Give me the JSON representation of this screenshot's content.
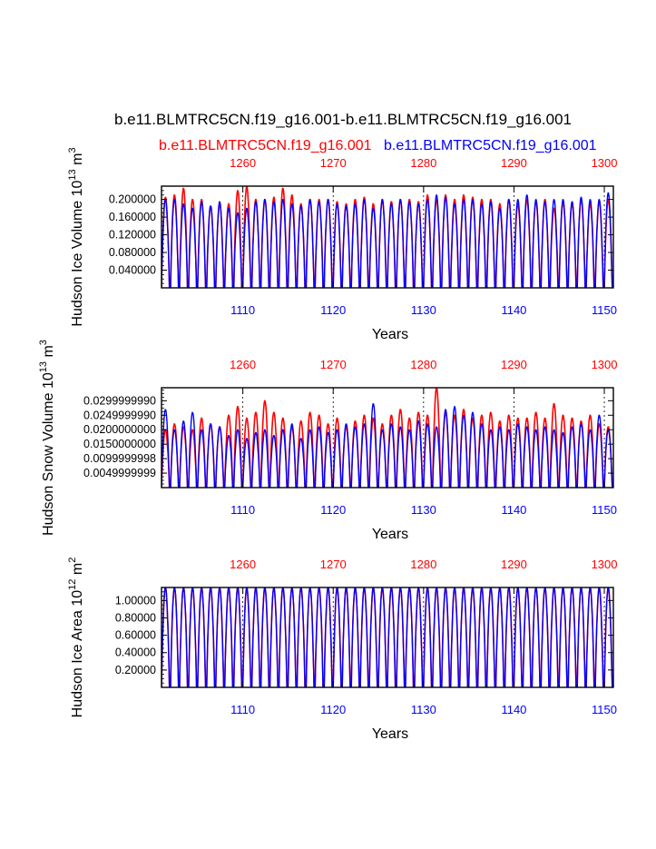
{
  "title": "b.e11.BLMTRC5CN.f19_g16.001-b.e11.BLMTRC5CN.f19_g16.001",
  "legend": {
    "red_case": "b.e11.BLMTRC5CN.f19_g16.001",
    "blue_case": "b.e11.BLMTRC5CN.f19_g16.001"
  },
  "colors": {
    "red": "#ff0000",
    "blue": "#0000ff",
    "axis": "#000000",
    "grid": "#000000"
  },
  "chart_data": [
    {
      "type": "line",
      "ylabel_main": "Hudson Ice Volume 10",
      "ylabel_exp": "13",
      "ylabel_unit": " m",
      "ylabel_unit_exp": "3",
      "xlabel": "Years",
      "x_bottom_ticks": [
        "1110",
        "1120",
        "1130",
        "1140",
        "1150"
      ],
      "x_top_ticks": [
        "1260",
        "1270",
        "1280",
        "1290",
        "1300"
      ],
      "x_bottom_range": [
        1101,
        1151
      ],
      "x_top_range": [
        1251,
        1301
      ],
      "ylim": [
        0.0,
        0.23
      ],
      "y_ticks": [
        "0.040000",
        "0.080000",
        "0.120000",
        "0.160000",
        "0.200000"
      ],
      "y_tick_values": [
        0.04,
        0.08,
        0.12,
        0.16,
        0.2
      ],
      "series": [
        {
          "name": "b.e11.BLMTRC5CN.f19_g16.001 (red)",
          "color": "#ff0000",
          "cycle_min": 0.0,
          "annual_max": [
            0.205,
            0.21,
            0.225,
            0.2,
            0.2,
            0.185,
            0.19,
            0.19,
            0.22,
            0.23,
            0.2,
            0.2,
            0.205,
            0.225,
            0.21,
            0.19,
            0.2,
            0.2,
            0.2,
            0.195,
            0.19,
            0.2,
            0.205,
            0.19,
            0.2,
            0.195,
            0.2,
            0.2,
            0.195,
            0.21,
            0.2,
            0.21,
            0.2,
            0.21,
            0.205,
            0.2,
            0.2,
            0.19,
            0.2,
            0.19,
            0.2,
            0.195,
            0.2,
            0.18,
            0.195,
            0.19,
            0.2,
            0.19,
            0.195,
            0.2
          ]
        },
        {
          "name": "b.e11.BLMTRC5CN.f19_g16.001 (blue)",
          "color": "#0000ff",
          "cycle_min": 0.0,
          "annual_max": [
            0.2,
            0.2,
            0.19,
            0.18,
            0.195,
            0.185,
            0.195,
            0.18,
            0.17,
            0.18,
            0.195,
            0.2,
            0.195,
            0.2,
            0.19,
            0.185,
            0.2,
            0.195,
            0.2,
            0.19,
            0.185,
            0.19,
            0.2,
            0.18,
            0.2,
            0.19,
            0.2,
            0.195,
            0.19,
            0.2,
            0.21,
            0.205,
            0.19,
            0.2,
            0.2,
            0.19,
            0.195,
            0.18,
            0.2,
            0.2,
            0.21,
            0.2,
            0.195,
            0.2,
            0.2,
            0.195,
            0.205,
            0.2,
            0.2,
            0.215
          ]
        }
      ]
    },
    {
      "type": "line",
      "ylabel_main": "Hudson Snow Volume 10",
      "ylabel_exp": "13",
      "ylabel_unit": " m",
      "ylabel_unit_exp": "3",
      "xlabel": "Years",
      "x_bottom_ticks": [
        "1110",
        "1120",
        "1130",
        "1140",
        "1150"
      ],
      "x_top_ticks": [
        "1260",
        "1270",
        "1280",
        "1290",
        "1300"
      ],
      "x_bottom_range": [
        1101,
        1151
      ],
      "x_top_range": [
        1251,
        1301
      ],
      "ylim": [
        0.0,
        0.0345
      ],
      "y_ticks": [
        "0.0049999999",
        "0.0099999998",
        "0.0150000000",
        "0.0200000000",
        "0.0249999990",
        "0.0299999990"
      ],
      "y_tick_values": [
        0.005,
        0.01,
        0.015,
        0.02,
        0.025,
        0.03
      ],
      "series": [
        {
          "name": "b.e11.BLMTRC5CN.f19_g16.001 (red)",
          "color": "#ff0000",
          "cycle_min": 0.0,
          "annual_max": [
            0.02,
            0.022,
            0.021,
            0.02,
            0.024,
            0.022,
            0.021,
            0.025,
            0.028,
            0.024,
            0.026,
            0.03,
            0.026,
            0.024,
            0.021,
            0.023,
            0.026,
            0.025,
            0.022,
            0.024,
            0.021,
            0.023,
            0.025,
            0.024,
            0.022,
            0.025,
            0.027,
            0.024,
            0.026,
            0.025,
            0.0345,
            0.026,
            0.025,
            0.027,
            0.024,
            0.025,
            0.026,
            0.023,
            0.025,
            0.024,
            0.024,
            0.026,
            0.024,
            0.029,
            0.025,
            0.024,
            0.023,
            0.025,
            0.022,
            0.021
          ]
        },
        {
          "name": "b.e11.BLMTRC5CN.f19_g16.001 (blue)",
          "color": "#0000ff",
          "cycle_min": 0.0,
          "annual_max": [
            0.027,
            0.02,
            0.023,
            0.026,
            0.02,
            0.022,
            0.021,
            0.018,
            0.02,
            0.017,
            0.019,
            0.02,
            0.018,
            0.02,
            0.022,
            0.017,
            0.02,
            0.021,
            0.019,
            0.02,
            0.022,
            0.021,
            0.022,
            0.029,
            0.02,
            0.022,
            0.021,
            0.02,
            0.023,
            0.022,
            0.021,
            0.027,
            0.028,
            0.025,
            0.026,
            0.022,
            0.02,
            0.021,
            0.02,
            0.022,
            0.021,
            0.02,
            0.021,
            0.02,
            0.019,
            0.021,
            0.022,
            0.02,
            0.025,
            0.02
          ]
        }
      ]
    },
    {
      "type": "line",
      "ylabel_main": "Hudson Ice Area 10",
      "ylabel_exp": "12",
      "ylabel_unit": " m",
      "ylabel_unit_exp": "2",
      "xlabel": "Years",
      "x_bottom_ticks": [
        "1110",
        "1120",
        "1130",
        "1140",
        "1150"
      ],
      "x_top_ticks": [
        "1260",
        "1270",
        "1280",
        "1290",
        "1300"
      ],
      "x_bottom_range": [
        1101,
        1151
      ],
      "x_top_range": [
        1251,
        1301
      ],
      "ylim": [
        0.0,
        1.15
      ],
      "y_ticks": [
        "0.20000",
        "0.40000",
        "0.60000",
        "0.80000",
        "1.00000"
      ],
      "y_tick_values": [
        0.2,
        0.4,
        0.6,
        0.8,
        1.0
      ],
      "series": [
        {
          "name": "b.e11.BLMTRC5CN.f19_g16.001 (red)",
          "color": "#ff0000",
          "cycle_min": 0.0,
          "annual_max": [
            1.15
          ]
        },
        {
          "name": "b.e11.BLMTRC5CN.f19_g16.001 (blue)",
          "color": "#0000ff",
          "cycle_min": 0.0,
          "annual_max": [
            1.15
          ]
        }
      ]
    }
  ]
}
